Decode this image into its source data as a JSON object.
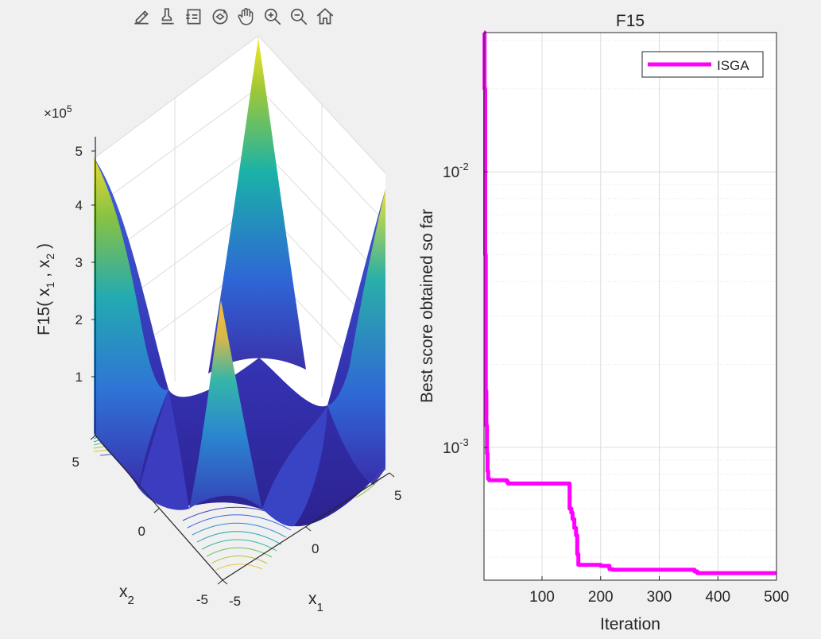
{
  "toolbar": {
    "buttons": [
      {
        "name": "export-icon"
      },
      {
        "name": "brush-icon"
      },
      {
        "name": "data-tips-icon"
      },
      {
        "name": "rotate-3d-icon"
      },
      {
        "name": "pan-hand-icon"
      },
      {
        "name": "zoom-in-icon"
      },
      {
        "name": "zoom-out-icon"
      },
      {
        "name": "home-icon"
      }
    ]
  },
  "left_plot": {
    "z_multiplier": "×10",
    "z_exponent": "5",
    "z_label_main": "F15( x",
    "z_label_sub1": "1",
    "z_label_sep": " , x",
    "z_label_sub2": "2",
    "z_label_end": " )",
    "z_ticks": [
      "5",
      "4",
      "3",
      "2",
      "1"
    ],
    "x1_label": "x",
    "x1_sub": "1",
    "x2_label": "x",
    "x2_sub": "2",
    "x1_ticks": [
      "-5",
      "0",
      "5"
    ],
    "x2_ticks": [
      "-5",
      "0",
      "5"
    ]
  },
  "chart_data": {
    "type": "line",
    "title": "F15",
    "xlabel": "Iteration",
    "ylabel": "Best score obtained so far",
    "yscale": "log",
    "xlim": [
      1,
      500
    ],
    "ylim": [
      0.00033,
      0.032
    ],
    "grid": true,
    "legend_position": "top-right",
    "x_ticks": [
      100,
      200,
      300,
      400,
      500
    ],
    "x_tick_labels": [
      "100",
      "200",
      "300",
      "400",
      "500"
    ],
    "y_ticks": [
      0.001,
      0.01
    ],
    "y_tick_base": "10",
    "y_tick_exponents": [
      "-3",
      "-2"
    ],
    "series": [
      {
        "name": "ISGA",
        "color": "#ff00ff",
        "x": [
          1,
          2,
          3,
          4,
          5,
          6,
          7,
          8,
          10,
          40,
          42,
          140,
          145,
          147,
          150,
          152,
          155,
          158,
          160,
          162,
          165,
          170,
          200,
          215,
          220,
          300,
          350,
          360,
          365,
          370,
          500
        ],
        "y": [
          0.032,
          0.02,
          0.005,
          0.0016,
          0.0012,
          0.00095,
          0.00082,
          0.00077,
          0.00076,
          0.00075,
          0.00074,
          0.00074,
          0.00074,
          0.0006,
          0.00058,
          0.00055,
          0.00051,
          0.00048,
          0.00041,
          0.000375,
          0.000375,
          0.000375,
          0.000372,
          0.000362,
          0.00036,
          0.00036,
          0.00036,
          0.000355,
          0.00035,
          0.00035,
          0.00035
        ]
      }
    ]
  }
}
